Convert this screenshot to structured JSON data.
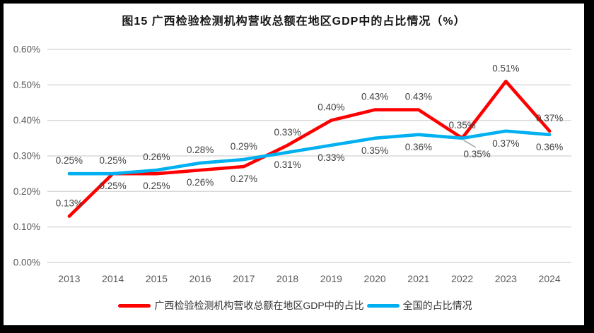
{
  "chart_data": {
    "type": "line",
    "title": "图15 广西检验检测机构营收总额在地区GDP中的占比情况（%）",
    "categories": [
      "2013",
      "2014",
      "2015",
      "2016",
      "2017",
      "2018",
      "2019",
      "2020",
      "2021",
      "2022",
      "2023",
      "2024"
    ],
    "y_axis": {
      "min": 0,
      "max": 0.6,
      "step": 0.1,
      "tick_labels": [
        "0.00%",
        "0.10%",
        "0.20%",
        "0.30%",
        "0.40%",
        "0.50%",
        "0.60%"
      ]
    },
    "grid": true,
    "legend_position": "bottom",
    "series": [
      {
        "name": "广西检验检测机构营收总额在地区GDP中的占比",
        "color": "#FF0000",
        "values": [
          0.13,
          0.25,
          0.25,
          0.26,
          0.27,
          0.33,
          0.4,
          0.43,
          0.43,
          0.35,
          0.51,
          0.37
        ],
        "label_side": [
          "above",
          "below",
          "below",
          "below",
          "below",
          "above",
          "above",
          "above",
          "above",
          "below-leader",
          "above",
          "above"
        ]
      },
      {
        "name": "全国的占比情况",
        "color": "#00B0F0",
        "values": [
          0.25,
          0.25,
          0.26,
          0.28,
          0.29,
          0.31,
          0.33,
          0.35,
          0.36,
          0.35,
          0.37,
          0.36
        ],
        "label_side": [
          "above",
          "above",
          "above",
          "above",
          "above",
          "below",
          "below",
          "below",
          "below",
          "above",
          "below",
          "below"
        ]
      }
    ],
    "colors": {
      "grid": "#D9D9D9",
      "axis_text": "#595959",
      "label_text": "#404040",
      "leader": "#A6A6A6"
    }
  }
}
